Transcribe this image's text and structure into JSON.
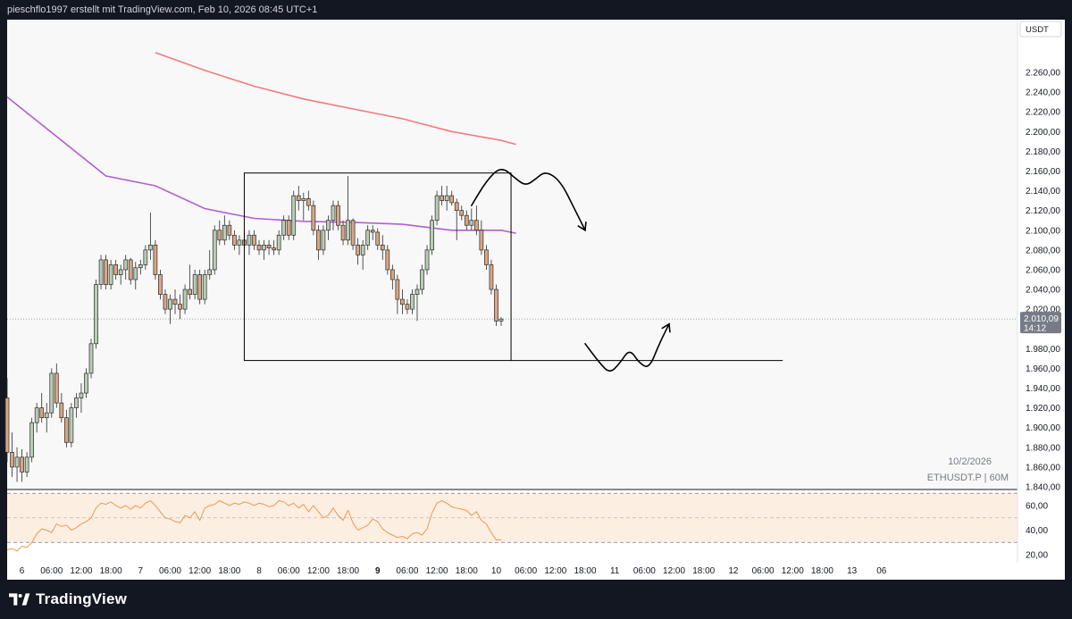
{
  "header": {
    "caption": "pieschflo1997 erstellt mit TradingView.com, Feb 10, 2026 08:45 UTC+1"
  },
  "footer": {
    "brand": "TradingView"
  },
  "colors": {
    "bull": "#b9cdb5",
    "bear": "#d8a684",
    "candle_outline": "#2a2a2a",
    "ma_fast": "#b35ed0",
    "ma_slow": "#ef7c7c",
    "rsi": "#e69a53",
    "rsi_band": "#fdeee2",
    "drawing": "#000000"
  },
  "chart_data": [
    {
      "type": "candlestick",
      "symbol_label": "ETHUSDT.P | 60M",
      "date_label": "10/2/2026",
      "currency": "USDT",
      "ylim": [
        1840,
        2280
      ],
      "y_ticks": [
        "2.260,00",
        "2.240,00",
        "2.220,00",
        "2.200,00",
        "2.180,00",
        "2.160,00",
        "2.140,00",
        "2.120,00",
        "2.100,00",
        "2.080,00",
        "2.060,00",
        "2.040,00",
        "2.020,00",
        "1.980,00",
        "1.960,00",
        "1.940,00",
        "1.920,00",
        "1.900,00",
        "1.880,00",
        "1.860,00",
        "1.840,00"
      ],
      "y_tick_values": [
        2260,
        2240,
        2220,
        2200,
        2180,
        2160,
        2140,
        2120,
        2100,
        2080,
        2060,
        2040,
        2020,
        1980,
        1960,
        1940,
        1920,
        1900,
        1880,
        1860,
        1840
      ],
      "x_ticks": [
        {
          "label": "6",
          "bar": 3,
          "bold": false
        },
        {
          "label": "06:00",
          "bar": 9,
          "bold": false
        },
        {
          "label": "12:00",
          "bar": 15,
          "bold": false
        },
        {
          "label": "18:00",
          "bar": 21,
          "bold": false
        },
        {
          "label": "7",
          "bar": 27,
          "bold": false
        },
        {
          "label": "06:00",
          "bar": 33,
          "bold": false
        },
        {
          "label": "12:00",
          "bar": 39,
          "bold": false
        },
        {
          "label": "18:00",
          "bar": 45,
          "bold": false
        },
        {
          "label": "8",
          "bar": 51,
          "bold": false
        },
        {
          "label": "06:00",
          "bar": 57,
          "bold": false
        },
        {
          "label": "12:00",
          "bar": 63,
          "bold": false
        },
        {
          "label": "18:00",
          "bar": 69,
          "bold": false
        },
        {
          "label": "9",
          "bar": 75,
          "bold": true
        },
        {
          "label": "06:00",
          "bar": 81,
          "bold": false
        },
        {
          "label": "12:00",
          "bar": 87,
          "bold": false
        },
        {
          "label": "18:00",
          "bar": 93,
          "bold": false
        },
        {
          "label": "10",
          "bar": 99,
          "bold": false
        },
        {
          "label": "06:00",
          "bar": 105,
          "bold": false
        },
        {
          "label": "12:00",
          "bar": 111,
          "bold": false
        },
        {
          "label": "18:00",
          "bar": 117,
          "bold": false
        },
        {
          "label": "11",
          "bar": 123,
          "bold": false
        },
        {
          "label": "06:00",
          "bar": 129,
          "bold": false
        },
        {
          "label": "12:00",
          "bar": 135,
          "bold": false
        },
        {
          "label": "18:00",
          "bar": 141,
          "bold": false
        },
        {
          "label": "12",
          "bar": 147,
          "bold": false
        },
        {
          "label": "06:00",
          "bar": 153,
          "bold": false
        },
        {
          "label": "12:00",
          "bar": 159,
          "bold": false
        },
        {
          "label": "18:00",
          "bar": 165,
          "bold": false
        },
        {
          "label": "13",
          "bar": 171,
          "bold": false
        },
        {
          "label": "06",
          "bar": 177,
          "bold": false
        }
      ],
      "last_price": {
        "value": 2010.09,
        "label": "2.010,09",
        "countdown": "14:12"
      },
      "candles": [
        [
          1930,
          1950,
          1865,
          1875
        ],
        [
          1875,
          1895,
          1850,
          1860
        ],
        [
          1860,
          1880,
          1845,
          1870
        ],
        [
          1870,
          1878,
          1845,
          1855
        ],
        [
          1855,
          1875,
          1850,
          1870
        ],
        [
          1870,
          1910,
          1865,
          1905
        ],
        [
          1905,
          1925,
          1895,
          1920
        ],
        [
          1920,
          1935,
          1905,
          1910
        ],
        [
          1910,
          1925,
          1895,
          1915
        ],
        [
          1915,
          1960,
          1910,
          1955
        ],
        [
          1955,
          1965,
          1920,
          1925
        ],
        [
          1925,
          1935,
          1905,
          1910
        ],
        [
          1910,
          1918,
          1880,
          1885
        ],
        [
          1885,
          1925,
          1880,
          1920
        ],
        [
          1920,
          1935,
          1910,
          1930
        ],
        [
          1930,
          1945,
          1915,
          1935
        ],
        [
          1935,
          1960,
          1930,
          1955
        ],
        [
          1955,
          1990,
          1950,
          1985
        ],
        [
          1985,
          2050,
          1980,
          2045
        ],
        [
          2045,
          2075,
          2040,
          2070
        ],
        [
          2070,
          2075,
          2040,
          2045
        ],
        [
          2045,
          2070,
          2040,
          2065
        ],
        [
          2065,
          2070,
          2050,
          2055
        ],
        [
          2055,
          2065,
          2045,
          2060
        ],
        [
          2060,
          2075,
          2050,
          2070
        ],
        [
          2070,
          2072,
          2045,
          2050
        ],
        [
          2050,
          2068,
          2040,
          2062
        ],
        [
          2062,
          2070,
          2055,
          2065
        ],
        [
          2065,
          2085,
          2060,
          2080
        ],
        [
          2080,
          2118,
          2070,
          2085
        ],
        [
          2085,
          2090,
          2050,
          2055
        ],
        [
          2055,
          2060,
          2030,
          2035
        ],
        [
          2035,
          2040,
          2015,
          2020
        ],
        [
          2020,
          2035,
          2005,
          2030
        ],
        [
          2030,
          2040,
          2015,
          2025
        ],
        [
          2025,
          2035,
          2010,
          2020
        ],
        [
          2020,
          2045,
          2015,
          2040
        ],
        [
          2040,
          2065,
          2030,
          2035
        ],
        [
          2035,
          2060,
          2030,
          2055
        ],
        [
          2055,
          2060,
          2025,
          2030
        ],
        [
          2030,
          2060,
          2025,
          2055
        ],
        [
          2055,
          2080,
          2050,
          2060
        ],
        [
          2060,
          2105,
          2055,
          2100
        ],
        [
          2100,
          2110,
          2085,
          2090
        ],
        [
          2090,
          2115,
          2085,
          2105
        ],
        [
          2105,
          2110,
          2090,
          2095
        ],
        [
          2095,
          2100,
          2080,
          2085
        ],
        [
          2085,
          2095,
          2075,
          2090
        ],
        [
          2090,
          2100,
          2080,
          2085
        ],
        [
          2085,
          2100,
          2075,
          2095
        ],
        [
          2095,
          2100,
          2080,
          2085
        ],
        [
          2085,
          2090,
          2075,
          2080
        ],
        [
          2080,
          2090,
          2070,
          2085
        ],
        [
          2085,
          2090,
          2075,
          2082
        ],
        [
          2082,
          2090,
          2075,
          2080
        ],
        [
          2080,
          2100,
          2075,
          2095
        ],
        [
          2095,
          2115,
          2090,
          2110
        ],
        [
          2110,
          2115,
          2090,
          2095
        ],
        [
          2095,
          2140,
          2090,
          2135
        ],
        [
          2135,
          2145,
          2120,
          2130
        ],
        [
          2130,
          2138,
          2110,
          2132
        ],
        [
          2132,
          2140,
          2120,
          2125
        ],
        [
          2125,
          2130,
          2095,
          2100
        ],
        [
          2100,
          2105,
          2070,
          2080
        ],
        [
          2080,
          2105,
          2075,
          2100
        ],
        [
          2100,
          2115,
          2090,
          2110
        ],
        [
          2110,
          2130,
          2100,
          2125
        ],
        [
          2125,
          2130,
          2100,
          2105
        ],
        [
          2105,
          2110,
          2085,
          2090
        ],
        [
          2090,
          2155,
          2085,
          2110
        ],
        [
          2110,
          2112,
          2080,
          2085
        ],
        [
          2085,
          2092,
          2065,
          2075
        ],
        [
          2075,
          2090,
          2060,
          2085
        ],
        [
          2085,
          2105,
          2080,
          2100
        ],
        [
          2100,
          2105,
          2090,
          2098
        ],
        [
          2098,
          2102,
          2080,
          2085
        ],
        [
          2085,
          2095,
          2070,
          2080
        ],
        [
          2080,
          2085,
          2055,
          2060
        ],
        [
          2060,
          2065,
          2040,
          2050
        ],
        [
          2050,
          2055,
          2015,
          2030
        ],
        [
          2030,
          2040,
          2015,
          2025
        ],
        [
          2025,
          2030,
          2015,
          2020
        ],
        [
          2020,
          2040,
          2015,
          2035
        ],
        [
          2035,
          2045,
          2008,
          2040
        ],
        [
          2040,
          2065,
          2035,
          2060
        ],
        [
          2060,
          2085,
          2055,
          2080
        ],
        [
          2080,
          2115,
          2075,
          2110
        ],
        [
          2110,
          2140,
          2105,
          2135
        ],
        [
          2135,
          2145,
          2125,
          2130
        ],
        [
          2130,
          2145,
          2120,
          2135
        ],
        [
          2135,
          2140,
          2125,
          2128
        ],
        [
          2128,
          2132,
          2090,
          2120
        ],
        [
          2120,
          2125,
          2110,
          2115
        ],
        [
          2115,
          2120,
          2100,
          2105
        ],
        [
          2105,
          2122,
          2100,
          2110
        ],
        [
          2110,
          2125,
          2095,
          2100
        ],
        [
          2100,
          2110,
          2075,
          2080
        ],
        [
          2080,
          2085,
          2060,
          2065
        ],
        [
          2065,
          2070,
          2035,
          2040
        ],
        [
          2040,
          2045,
          2003,
          2008
        ],
        [
          2008,
          2012,
          2003,
          2010
        ]
      ],
      "series": [
        {
          "name": "",
          "type": "line",
          "color": "#b35ed0",
          "points": [
            [
              0,
              2235
            ],
            [
              10,
              2195
            ],
            [
              20,
              2155
            ],
            [
              30,
              2145
            ],
            [
              40,
              2122
            ],
            [
              50,
              2112
            ],
            [
              60,
              2109
            ],
            [
              70,
              2108
            ],
            [
              80,
              2106
            ],
            [
              90,
              2100
            ],
            [
              100,
              2100
            ],
            [
              103,
              2097
            ]
          ]
        },
        {
          "name": "",
          "type": "line",
          "color": "#ef7c7c",
          "points": [
            [
              30,
              2280
            ],
            [
              40,
              2262
            ],
            [
              50,
              2246
            ],
            [
              60,
              2233
            ],
            [
              70,
              2223
            ],
            [
              80,
              2213
            ],
            [
              90,
              2200
            ],
            [
              100,
              2191
            ],
            [
              103,
              2187
            ]
          ]
        }
      ],
      "drawings": [
        {
          "kind": "rectangle",
          "bar_start": 48,
          "bar_end": 102,
          "price_top": 2158,
          "price_bottom": 1968
        },
        {
          "kind": "line",
          "bar_start": 102,
          "bar_end": 157,
          "price": 1968
        },
        {
          "kind": "freehand-arrow",
          "points": [
            [
              94,
              2125
            ],
            [
              97,
              2150
            ],
            [
              100,
              2165
            ],
            [
              103,
              2152
            ],
            [
              105,
              2145
            ],
            [
              107,
              2152
            ],
            [
              109,
              2160
            ],
            [
              112,
              2150
            ],
            [
              115,
              2120
            ],
            [
              117,
              2100
            ]
          ]
        },
        {
          "kind": "freehand-arrow",
          "points": [
            [
              117,
              1985
            ],
            [
              120,
              1965
            ],
            [
              122,
              1955
            ],
            [
              124,
              1965
            ],
            [
              126,
              1980
            ],
            [
              128,
              1965
            ],
            [
              130,
              1960
            ],
            [
              132,
              1985
            ],
            [
              134,
              2005
            ]
          ]
        }
      ]
    },
    {
      "type": "line",
      "indicator": "RSI",
      "ylim": [
        18,
        72
      ],
      "y_ticks": [
        "60,00",
        "40,00",
        "20,00"
      ],
      "y_tick_values": [
        60,
        40,
        20
      ],
      "band": [
        30,
        70
      ],
      "mid": 50,
      "values": [
        24,
        25,
        23,
        27,
        26,
        30,
        37,
        41,
        40,
        38,
        45,
        43,
        44,
        40,
        42,
        45,
        47,
        50,
        58,
        62,
        61,
        63,
        60,
        58,
        60,
        57,
        60,
        58,
        62,
        64,
        60,
        55,
        50,
        49,
        47,
        46,
        52,
        50,
        55,
        48,
        58,
        60,
        61,
        64,
        62,
        60,
        62,
        61,
        63,
        62,
        60,
        62,
        61,
        59,
        60,
        64,
        63,
        60,
        62,
        58,
        61,
        55,
        60,
        55,
        50,
        52,
        58,
        52,
        48,
        56,
        46,
        40,
        42,
        44,
        49,
        47,
        41,
        38,
        36,
        34,
        35,
        33,
        37,
        38,
        36,
        41,
        54,
        62,
        64,
        62,
        59,
        58,
        57,
        56,
        52,
        55,
        48,
        45,
        38,
        32,
        32
      ]
    }
  ]
}
